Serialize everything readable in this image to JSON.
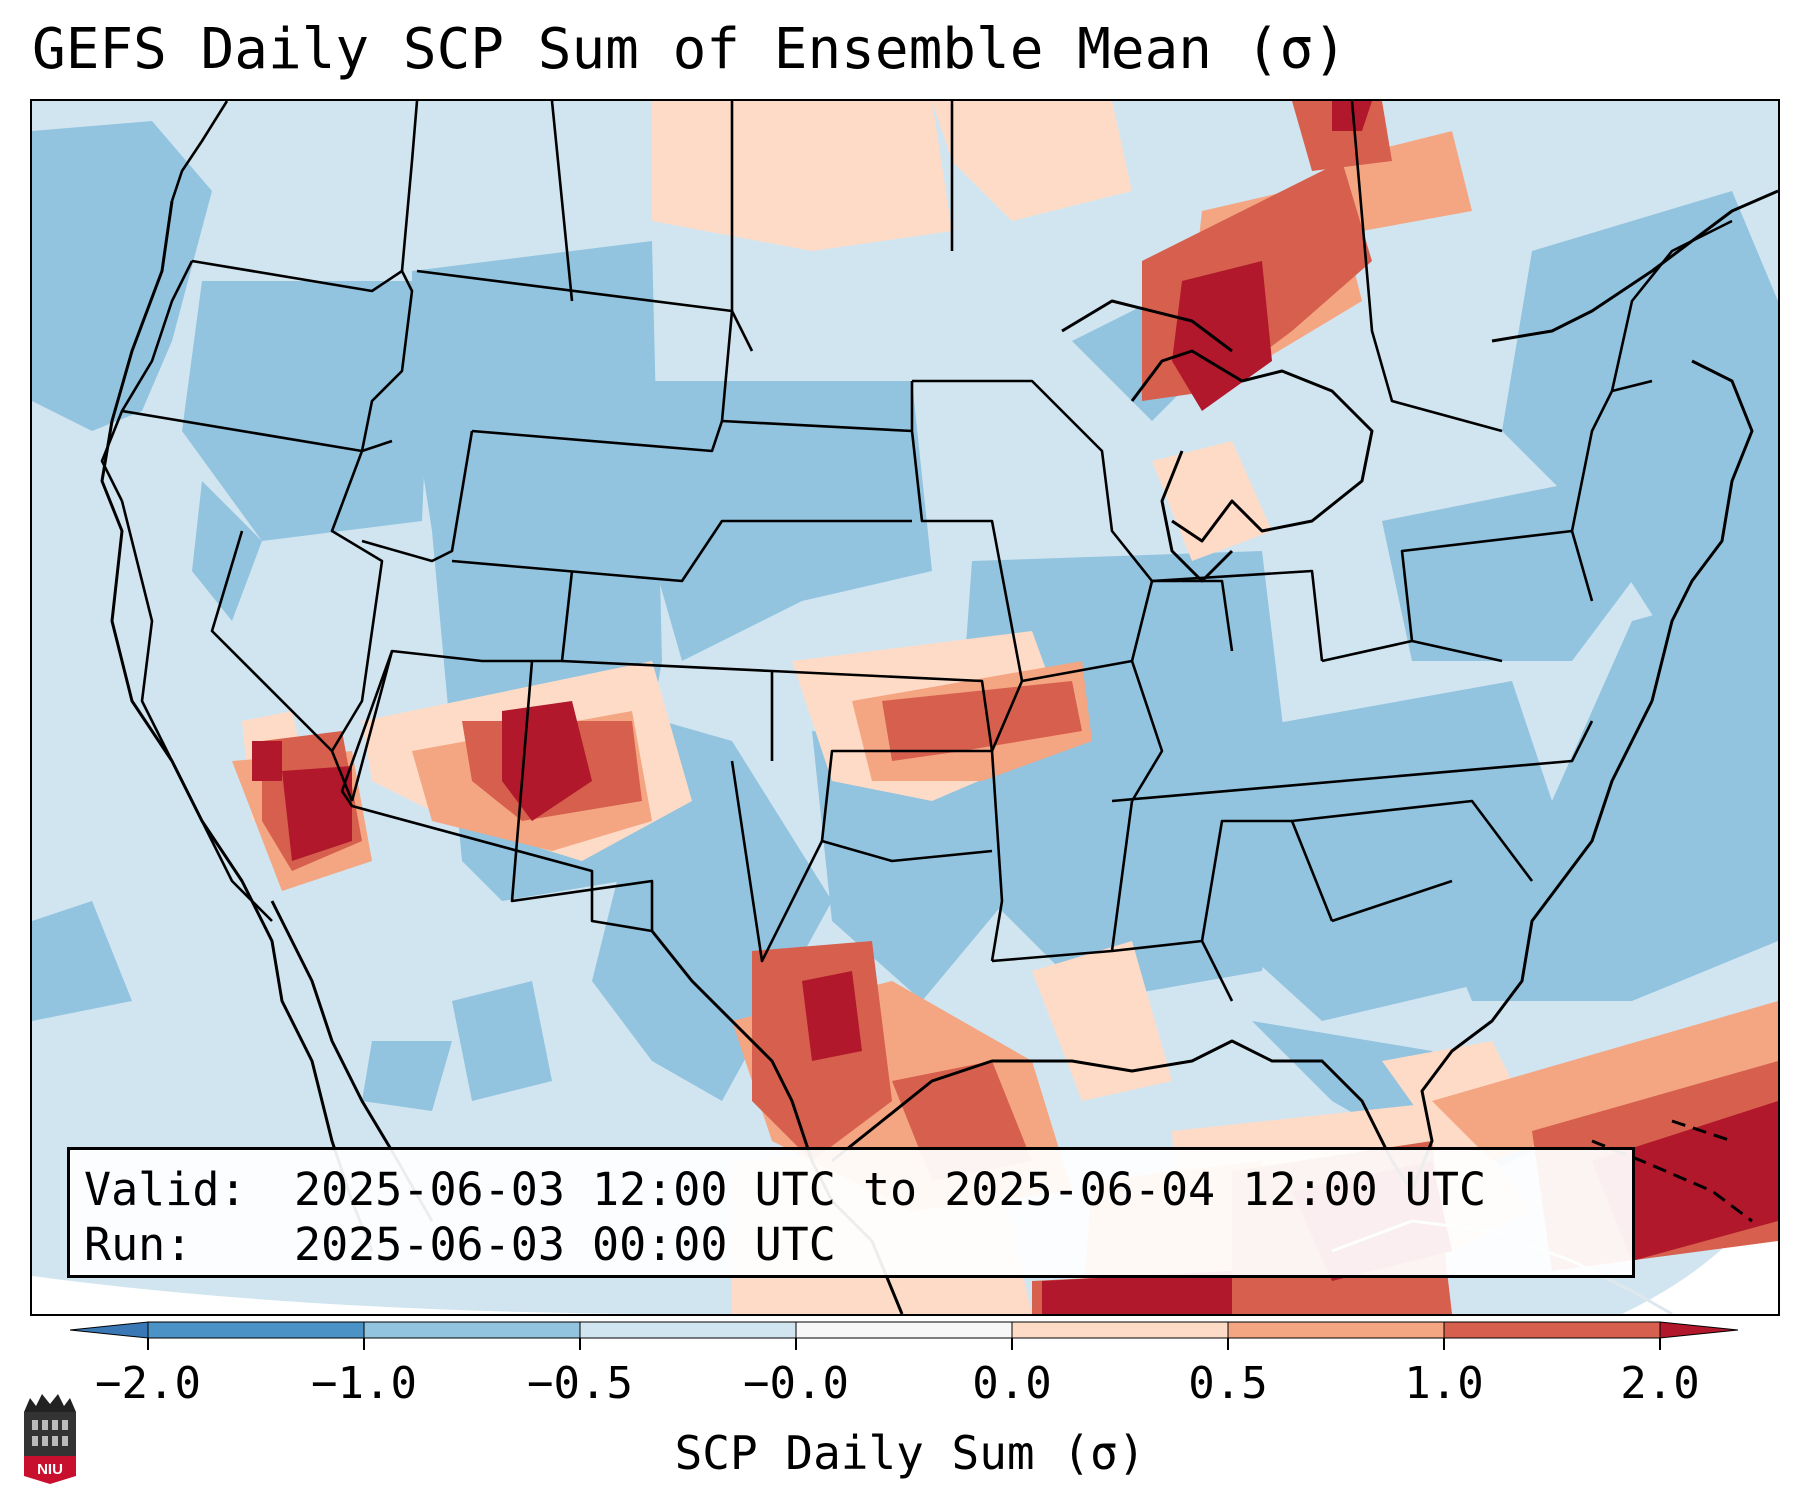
{
  "title": "GEFS Daily SCP Sum of Ensemble Mean (σ)",
  "info": {
    "valid_label": "Valid:",
    "valid_value": "2025-06-03 12:00 UTC to 2025-06-04 12:00 UTC",
    "run_label": "Run:",
    "run_value": "2025-06-03 00:00 UTC"
  },
  "colorbar": {
    "label": "SCP Daily Sum (σ)",
    "ticks": [
      "−2.0",
      "−1.0",
      "−0.5",
      "−0.0",
      "0.0",
      "0.5",
      "1.0",
      "2.0"
    ],
    "bins": [
      {
        "range": "< -2.0",
        "color": "#3a78b5"
      },
      {
        "range": "-2.0 to -1.0",
        "color": "#4b92c6"
      },
      {
        "range": "-1.0 to -0.5",
        "color": "#92c3df"
      },
      {
        "range": "-0.5 to -0.0",
        "color": "#d1e5f1"
      },
      {
        "range": "-0.0 to 0.0",
        "color": "#f7f7f7"
      },
      {
        "range": "0.0 to 0.5",
        "color": "#fddbc7"
      },
      {
        "range": "0.5 to 1.0",
        "color": "#f4a582"
      },
      {
        "range": "1.0 to 2.0",
        "color": "#d6604d"
      },
      {
        "range": "> 2.0",
        "color": "#b2182b"
      }
    ]
  },
  "logo": {
    "text": "NIU",
    "description": "Northern Illinois University"
  },
  "map": {
    "region": "Contiguous United States",
    "field": "SCP daily sum anomaly",
    "units": "σ",
    "max_regions": [
      "Southwest (AZ/UT/CO border)",
      "Southern California / Nevada",
      "Upper Michigan / Lake Superior",
      "Southern Texas",
      "Gulf of Mexico",
      "Caribbean / Bahamas"
    ],
    "elevated_regions": [
      "Kansas / Missouri",
      "North Dakota",
      "Ontario"
    ]
  }
}
